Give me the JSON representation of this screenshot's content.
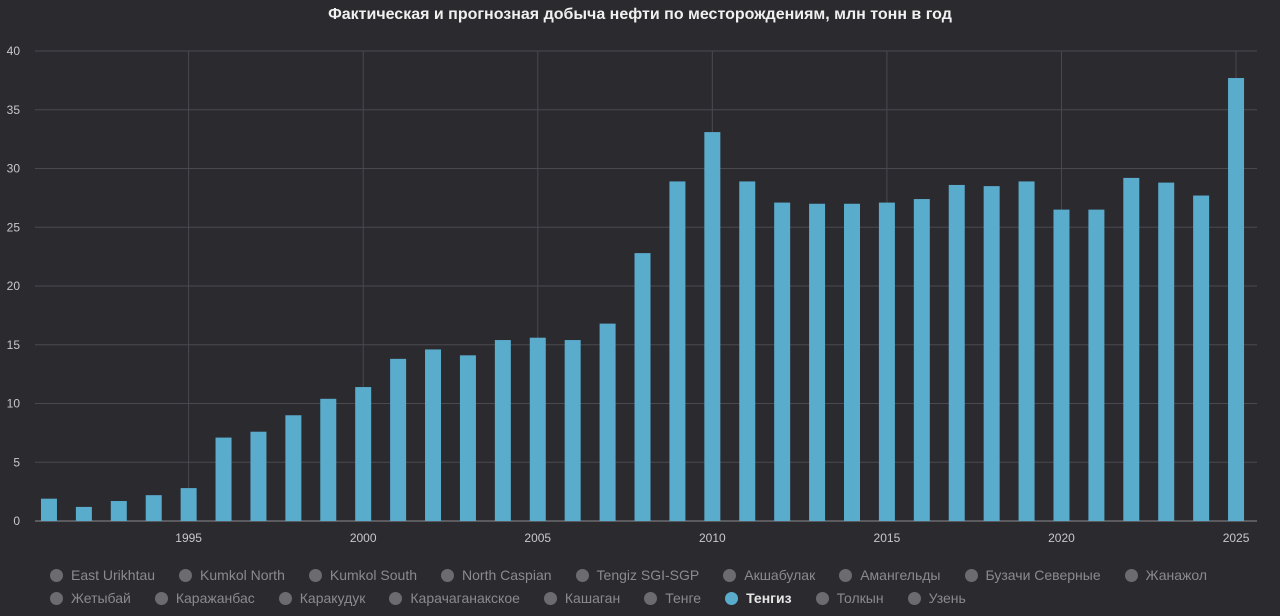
{
  "chart_data": {
    "type": "bar",
    "title": "Фактическая и прогнозная добыча нефти по месторождениям, млн тонн в год",
    "xlabel": "",
    "ylabel": "",
    "ylim": [
      0,
      40
    ],
    "yticks": [
      0,
      5,
      10,
      15,
      20,
      25,
      30,
      35,
      40
    ],
    "xlim": [
      1990.6,
      2025.6
    ],
    "xticks": [
      1995,
      2000,
      2005,
      2010,
      2015,
      2020,
      2025
    ],
    "grid": true,
    "legend_position": "bottom",
    "bar_color": "#5aaccd",
    "series": [
      {
        "name": "Тенгиз",
        "x": [
          1991,
          1992,
          1993,
          1994,
          1995,
          1996,
          1997,
          1998,
          1999,
          2000,
          2001,
          2002,
          2003,
          2004,
          2005,
          2006,
          2007,
          2008,
          2009,
          2010,
          2011,
          2012,
          2013,
          2014,
          2015,
          2016,
          2017,
          2018,
          2019,
          2020,
          2021,
          2022,
          2023,
          2024,
          2025
        ],
        "values": [
          1.9,
          1.2,
          1.7,
          2.2,
          2.8,
          7.1,
          7.6,
          9.0,
          10.4,
          11.4,
          13.8,
          14.6,
          14.1,
          15.4,
          15.6,
          15.4,
          16.8,
          22.8,
          28.9,
          33.1,
          28.9,
          27.1,
          27.0,
          27.0,
          27.1,
          27.4,
          28.6,
          28.5,
          28.9,
          26.5,
          26.5,
          29.2,
          28.8,
          27.7,
          37.7
        ]
      }
    ]
  },
  "legend": {
    "row1": [
      "East Urikhtau",
      "Kumkol North",
      "Kumkol South",
      "North Caspian",
      "Tengiz SGI-SGP",
      "Акшабулак",
      "Амангельды",
      "Бузачи Северные",
      "Жанажол"
    ],
    "row2": [
      "Жетыбай",
      "Каражанбас",
      "Каракудук",
      "Карачаганакское",
      "Кашаган",
      "Тенге",
      "Тенгиз",
      "Толкын",
      "Узень"
    ],
    "active": "Тенгиз"
  }
}
